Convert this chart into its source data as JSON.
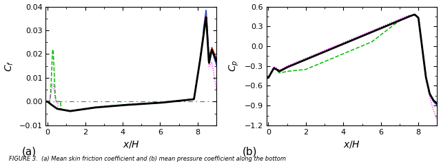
{
  "ylabel_left": "$C_f$",
  "ylabel_right": "$C_p$",
  "xlabel": "$x/H$",
  "xlim": [
    -0.1,
    9.0
  ],
  "ylim_left": [
    -0.01,
    0.04
  ],
  "ylim_right": [
    -1.2,
    0.6
  ],
  "yticks_left": [
    -0.01,
    0.0,
    0.01,
    0.02,
    0.03,
    0.04
  ],
  "yticks_right": [
    -1.2,
    -0.9,
    -0.6,
    -0.3,
    0.0,
    0.3,
    0.6
  ],
  "xticks": [
    0,
    2,
    4,
    6,
    8
  ],
  "caption": "FIGURE 3.  (a) Mean skin friction coefficient and (b) mean pressure coefficient along the bottom",
  "label_a": "(a)",
  "label_b": "(b)"
}
